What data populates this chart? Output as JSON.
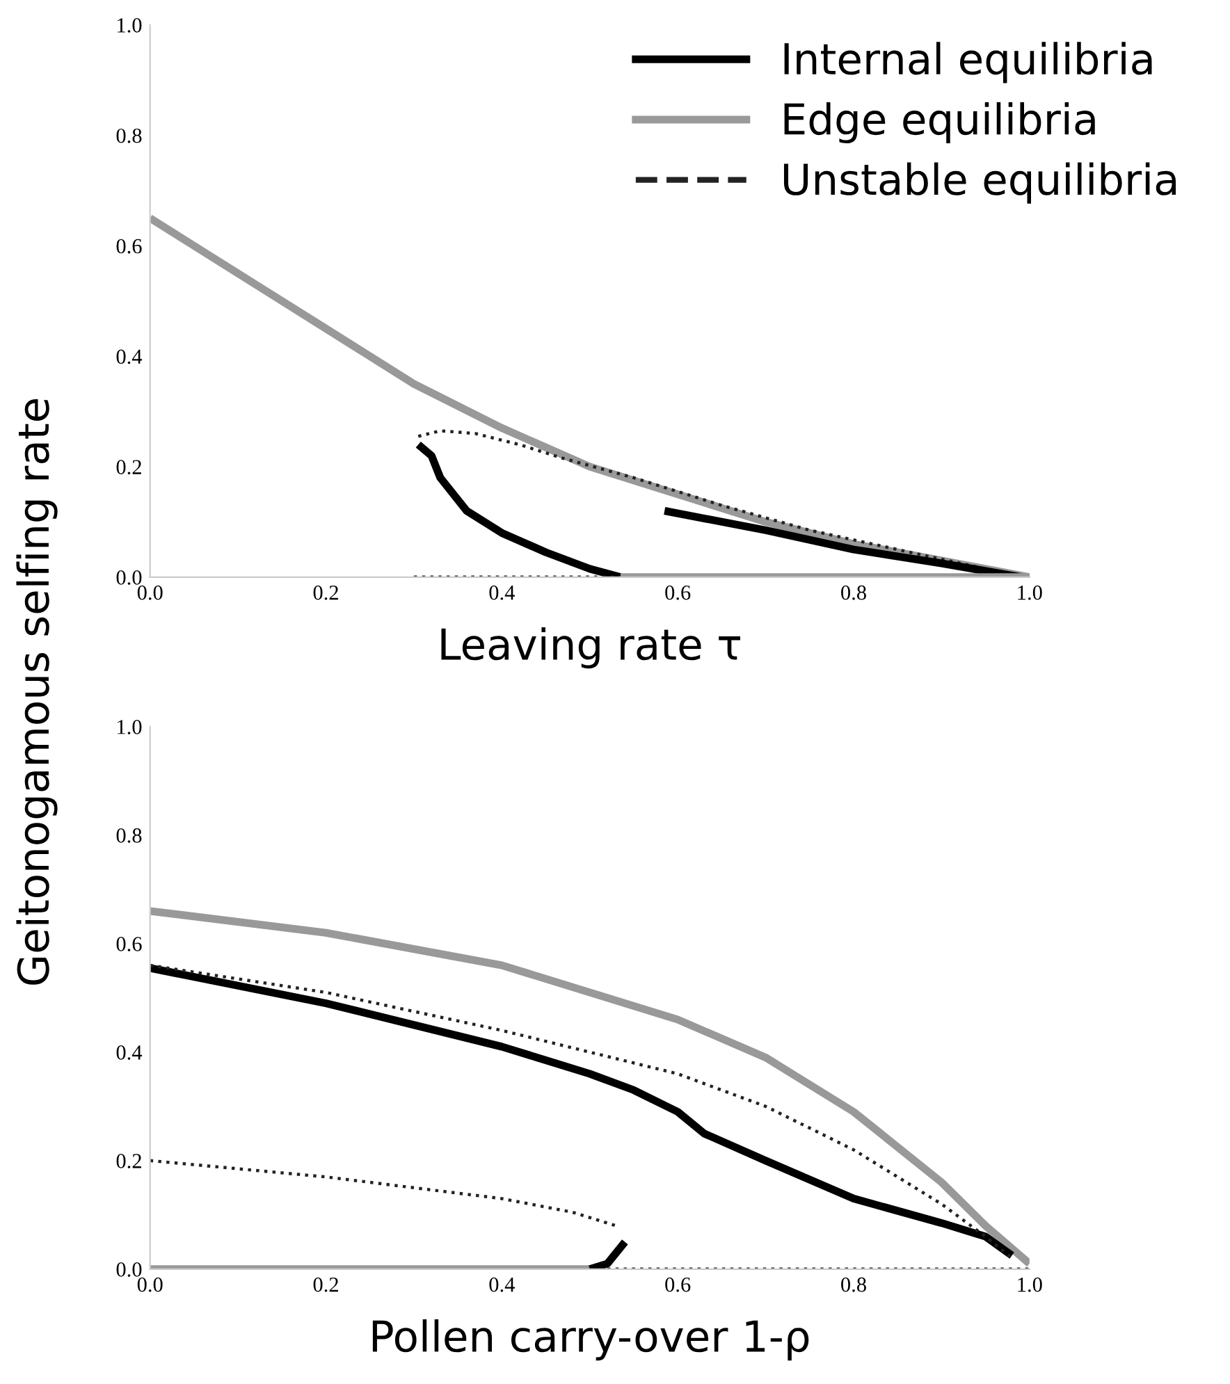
{
  "chart_data": [
    {
      "type": "line",
      "xlabel": "Leaving rate τ",
      "ylabel": "Geitonogamous selfing rate",
      "xlim": [
        0,
        1
      ],
      "ylim": [
        0,
        1
      ],
      "xticks": [
        {
          "value": 0,
          "label": "0.0"
        },
        {
          "value": 0.2,
          "label": "0.2"
        },
        {
          "value": 0.4,
          "label": "0.4"
        },
        {
          "value": 0.6,
          "label": "0.6"
        },
        {
          "value": 0.8,
          "label": "0.8"
        },
        {
          "value": 1,
          "label": "1.0"
        }
      ],
      "yticks": [
        {
          "value": 0,
          "label": "0.0"
        },
        {
          "value": 0.2,
          "label": "0.2"
        },
        {
          "value": 0.4,
          "label": "0.4"
        },
        {
          "value": 0.6,
          "label": "0.6"
        },
        {
          "value": 0.8,
          "label": "0.8"
        },
        {
          "value": 1,
          "label": "1.0"
        }
      ],
      "grid": false,
      "legend": "top right",
      "series": [
        {
          "name": "Internal equilibria",
          "color": "#000000",
          "line_style": "solid",
          "x": [
            0.305,
            0.32,
            0.33,
            0.36,
            0.4,
            0.45,
            0.5,
            0.535
          ],
          "values": [
            0.24,
            0.22,
            0.18,
            0.12,
            0.08,
            0.045,
            0.015,
            0.0
          ]
        },
        {
          "name": "Edge equilibria",
          "color": "#999999",
          "line_style": "solid",
          "x": [
            0,
            0.1,
            0.2,
            0.3,
            0.4,
            0.5,
            0.6,
            0.7,
            0.8,
            0.9,
            1.0
          ],
          "values": [
            0.65,
            0.55,
            0.45,
            0.35,
            0.27,
            0.2,
            0.15,
            0.1,
            0.06,
            0.03,
            0.0
          ]
        },
        {
          "name": "Unstable equilibria",
          "color": "#222222",
          "line_style": "dotted",
          "x": [
            0.305,
            0.33,
            0.37,
            0.42,
            0.47,
            0.55,
            0.65,
            0.75,
            0.85,
            0.95,
            1.0
          ],
          "values": [
            0.255,
            0.265,
            0.26,
            0.24,
            0.215,
            0.18,
            0.13,
            0.085,
            0.05,
            0.015,
            0.0
          ]
        },
        {
          "color": "#000000",
          "line_style": "solid",
          "x": [
            0.585,
            0.7,
            0.8,
            0.9,
            0.99
          ],
          "values": [
            0.12,
            0.085,
            0.05,
            0.025,
            0.0
          ]
        },
        {
          "color": "#999999",
          "line_style": "solid",
          "x": [
            0.535,
            1.0
          ],
          "values": [
            0.0,
            0.0
          ]
        },
        {
          "color": "#222222",
          "line_style": "dotted",
          "x": [
            0.3,
            0.535
          ],
          "values": [
            0.0,
            0.0
          ]
        }
      ]
    },
    {
      "type": "line",
      "xlabel": "Pollen carry-over 1-ρ",
      "xlim": [
        0,
        1
      ],
      "ylim": [
        0,
        1
      ],
      "xticks": [
        {
          "value": 0,
          "label": "0.0"
        },
        {
          "value": 0.2,
          "label": "0.2"
        },
        {
          "value": 0.4,
          "label": "0.4"
        },
        {
          "value": 0.6,
          "label": "0.6"
        },
        {
          "value": 0.8,
          "label": "0.8"
        },
        {
          "value": 1,
          "label": "1.0"
        }
      ],
      "yticks": [
        {
          "value": 0,
          "label": "0.0"
        },
        {
          "value": 0.2,
          "label": "0.2"
        },
        {
          "value": 0.4,
          "label": "0.4"
        },
        {
          "value": 0.6,
          "label": "0.6"
        },
        {
          "value": 0.8,
          "label": "0.8"
        },
        {
          "value": 1,
          "label": "1.0"
        }
      ],
      "grid": false,
      "series": [
        {
          "color": "#999999",
          "line_style": "solid",
          "x": [
            0,
            0.2,
            0.4,
            0.6,
            0.7,
            0.8,
            0.9,
            0.95,
            1.0
          ],
          "values": [
            0.66,
            0.62,
            0.56,
            0.46,
            0.39,
            0.29,
            0.16,
            0.08,
            0.01
          ]
        },
        {
          "color": "#999999",
          "line_style": "solid",
          "x": [
            0,
            0.5
          ],
          "values": [
            0.0,
            0.0
          ]
        },
        {
          "color": "#000000",
          "line_style": "solid",
          "x": [
            0,
            0.2,
            0.4,
            0.5,
            0.55,
            0.6,
            0.63,
            0.7,
            0.8,
            0.9,
            0.95,
            0.98
          ],
          "values": [
            0.555,
            0.49,
            0.41,
            0.36,
            0.33,
            0.29,
            0.25,
            0.2,
            0.13,
            0.085,
            0.06,
            0.025
          ]
        },
        {
          "color": "#000000",
          "line_style": "solid",
          "x": [
            0.5,
            0.52,
            0.54
          ],
          "values": [
            0.0,
            0.01,
            0.05
          ]
        },
        {
          "color": "#222222",
          "line_style": "dotted",
          "x": [
            0,
            0.2,
            0.4,
            0.6,
            0.7,
            0.8,
            0.9,
            0.95,
            0.98
          ],
          "values": [
            0.56,
            0.51,
            0.44,
            0.36,
            0.3,
            0.22,
            0.12,
            0.06,
            0.02
          ]
        },
        {
          "color": "#222222",
          "line_style": "dotted",
          "x": [
            0,
            0.2,
            0.4,
            0.48,
            0.53
          ],
          "values": [
            0.2,
            0.17,
            0.13,
            0.105,
            0.08
          ]
        },
        {
          "color": "#222222",
          "line_style": "dotted",
          "x": [
            0.52,
            1.0
          ],
          "values": [
            0.0,
            0.0
          ]
        }
      ]
    }
  ]
}
